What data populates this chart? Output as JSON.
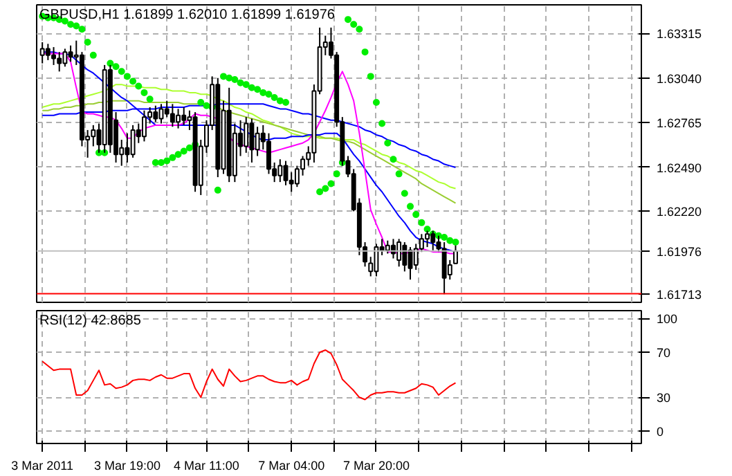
{
  "chart_data": [
    {
      "type": "candlestick",
      "title": "GBPUSD,H1  1.61899 1.62010 1.61899 1.61976",
      "categories": [
        null,
        null,
        null,
        null,
        null,
        null,
        null,
        null,
        null,
        null,
        null,
        null,
        null,
        null,
        null,
        null,
        null,
        null,
        null,
        null,
        null,
        null,
        null,
        null,
        null,
        null,
        null,
        null,
        null,
        null,
        null,
        null,
        null,
        null,
        null,
        null,
        null,
        null,
        null,
        null,
        null,
        null,
        null,
        null,
        null,
        null,
        null,
        null,
        null,
        null,
        null,
        null,
        null,
        null,
        null,
        null,
        null,
        null,
        null,
        null,
        null,
        null,
        null,
        null,
        null,
        null,
        null,
        null,
        null,
        null,
        null,
        null,
        null,
        null
      ],
      "ohlc": [
        [
          1.6318,
          1.6326,
          1.6313,
          1.6322
        ],
        [
          1.6322,
          1.6325,
          1.6315,
          1.6318
        ],
        [
          1.6318,
          1.6323,
          1.6312,
          1.6316
        ],
        [
          1.6316,
          1.632,
          1.6308,
          1.6313
        ],
        [
          1.6313,
          1.6322,
          1.6311,
          1.632
        ],
        [
          1.632,
          1.6324,
          1.6314,
          1.6317
        ],
        [
          1.6317,
          1.6327,
          1.6312,
          1.6318
        ],
        [
          1.6318,
          1.632,
          1.6262,
          1.6266
        ],
        [
          1.6266,
          1.6272,
          1.6255,
          1.6268
        ],
        [
          1.6268,
          1.6275,
          1.6262,
          1.6272
        ],
        [
          1.6272,
          1.6276,
          1.6258,
          1.6263
        ],
        [
          1.6263,
          1.6312,
          1.6258,
          1.6309
        ],
        [
          1.6309,
          1.6312,
          1.6258,
          1.6263
        ],
        [
          1.6278,
          1.6283,
          1.6252,
          1.6257
        ],
        [
          1.6257,
          1.6266,
          1.625,
          1.6261
        ],
        [
          1.6261,
          1.627,
          1.6252,
          1.6257
        ],
        [
          1.6257,
          1.6275,
          1.6255,
          1.6272
        ],
        [
          1.6272,
          1.6276,
          1.6264,
          1.6268
        ],
        [
          1.6268,
          1.6284,
          1.6265,
          1.628
        ],
        [
          1.628,
          1.6286,
          1.6276,
          1.6283
        ],
        [
          1.6283,
          1.6287,
          1.6277,
          1.6279
        ],
        [
          1.6279,
          1.6288,
          1.6276,
          1.6285
        ],
        [
          1.6285,
          1.629,
          1.628,
          1.6282
        ],
        [
          1.6282,
          1.6288,
          1.6274,
          1.6277
        ],
        [
          1.6277,
          1.6285,
          1.6273,
          1.6281
        ],
        [
          1.6281,
          1.6286,
          1.6275,
          1.6278
        ],
        [
          1.6278,
          1.6284,
          1.6272,
          1.628
        ],
        [
          1.628,
          1.6283,
          1.6234,
          1.6238
        ],
        [
          1.6238,
          1.6266,
          1.6232,
          1.6262
        ],
        [
          1.6262,
          1.6278,
          1.6258,
          1.6275
        ],
        [
          1.6275,
          1.6305,
          1.6272,
          1.63
        ],
        [
          1.63,
          1.6304,
          1.6243,
          1.6248
        ],
        [
          1.6248,
          1.629,
          1.6245,
          1.6284
        ],
        [
          1.6284,
          1.6298,
          1.624,
          1.6244
        ],
        [
          1.6244,
          1.6276,
          1.624,
          1.627
        ],
        [
          1.627,
          1.6278,
          1.6256,
          1.6262
        ],
        [
          1.6262,
          1.628,
          1.6258,
          1.6276
        ],
        [
          1.6276,
          1.6279,
          1.6252,
          1.626
        ],
        [
          1.626,
          1.6274,
          1.6256,
          1.627
        ],
        [
          1.627,
          1.6275,
          1.626,
          1.6265
        ],
        [
          1.6265,
          1.627,
          1.6245,
          1.6248
        ],
        [
          1.6248,
          1.6252,
          1.624,
          1.6244
        ],
        [
          1.6244,
          1.6254,
          1.624,
          1.625
        ],
        [
          1.625,
          1.6253,
          1.6238,
          1.6241
        ],
        [
          1.6241,
          1.6246,
          1.6234,
          1.6239
        ],
        [
          1.6239,
          1.625,
          1.6237,
          1.6248
        ],
        [
          1.6248,
          1.6256,
          1.6244,
          1.6254
        ],
        [
          1.6254,
          1.6262,
          1.625,
          1.6258
        ],
        [
          1.6258,
          1.63,
          1.6252,
          1.6296
        ],
        [
          1.6296,
          1.6335,
          1.6294,
          1.6323
        ],
        [
          1.6323,
          1.633,
          1.6318,
          1.6326
        ],
        [
          1.6326,
          1.6335,
          1.6316,
          1.6318
        ],
        [
          1.6318,
          1.632,
          1.6274,
          1.6277
        ],
        [
          1.6277,
          1.628,
          1.625,
          1.6253
        ],
        [
          1.6253,
          1.6256,
          1.6243,
          1.6245
        ],
        [
          1.6245,
          1.6248,
          1.6222,
          1.6223
        ],
        [
          1.6227,
          1.623,
          1.6195,
          1.62
        ],
        [
          1.62,
          1.6203,
          1.6188,
          1.6191
        ],
        [
          1.6185,
          1.6194,
          1.6182,
          1.619
        ],
        [
          1.6185,
          1.6202,
          1.6182,
          1.62
        ],
        [
          1.62,
          1.6205,
          1.6195,
          1.6198
        ],
        [
          1.6198,
          1.6204,
          1.6196,
          1.6201
        ],
        [
          1.6201,
          1.6205,
          1.6193,
          1.6196
        ],
        [
          1.6192,
          1.6205,
          1.6188,
          1.6203
        ],
        [
          1.6201,
          1.6203,
          1.6185,
          1.6189
        ],
        [
          1.6198,
          1.62,
          1.618,
          1.6187
        ],
        [
          1.6189,
          1.6202,
          1.6186,
          1.6199
        ],
        [
          1.6199,
          1.6208,
          1.6197,
          1.6205
        ],
        [
          1.6205,
          1.621,
          1.62,
          1.6208
        ],
        [
          1.6208,
          1.621,
          1.6198,
          1.6203
        ],
        [
          1.6203,
          1.6207,
          1.6197,
          1.6199
        ],
        [
          1.6199,
          1.6203,
          1.6171,
          1.6181
        ],
        [
          1.6183,
          1.6192,
          1.618,
          1.6189
        ],
        [
          1.61899,
          1.6201,
          1.61899,
          1.61976
        ]
      ],
      "series": [
        {
          "type": "line",
          "color": "#adff2f",
          "values": [
            1.6286,
            1.6287,
            1.6288,
            1.6288,
            1.6289,
            1.629,
            1.6291,
            1.6292,
            1.6293,
            1.6294,
            1.6295,
            1.6296,
            1.6298,
            1.63,
            1.63,
            1.6299,
            1.6299,
            1.6299,
            1.6298,
            1.6298,
            1.6298,
            1.6297,
            1.6297,
            1.6296,
            1.6296,
            1.6296,
            1.6295,
            1.6295,
            1.6294,
            1.6294,
            1.6293,
            1.6291,
            1.629,
            1.6288,
            1.6286,
            1.6285,
            1.6283,
            1.6282,
            1.628,
            1.6278,
            1.6277,
            1.6275,
            1.6274,
            1.6272,
            1.627,
            1.6269,
            1.6268,
            1.6268,
            1.6268,
            1.6267,
            1.6267,
            1.6267,
            1.6267,
            1.6266,
            1.6266,
            1.6266,
            1.6264,
            1.6263,
            1.6261,
            1.6259,
            1.6257,
            1.6256,
            1.6254,
            1.6252,
            1.6251,
            1.6249,
            1.6247,
            1.6246,
            1.6244,
            1.6242,
            1.624,
            1.6239,
            1.6237,
            1.6236
          ]
        },
        {
          "type": "line",
          "color": "#9acd32",
          "values": [
            1.6284,
            1.6284,
            1.6285,
            1.6285,
            1.6286,
            1.6286,
            1.6287,
            1.6287,
            1.6288,
            1.6288,
            1.6289,
            1.6289,
            1.629,
            1.629,
            1.629,
            1.629,
            1.629,
            1.629,
            1.6289,
            1.6289,
            1.6289,
            1.6289,
            1.6289,
            1.6289,
            1.6289,
            1.6288,
            1.6288,
            1.6288,
            1.6288,
            1.6288,
            1.6287,
            1.6286,
            1.6284,
            1.6283,
            1.6282,
            1.6281,
            1.628,
            1.6279,
            1.6278,
            1.6277,
            1.6276,
            1.6275,
            1.6274,
            1.6273,
            1.6272,
            1.6271,
            1.627,
            1.6269,
            1.6269,
            1.6268,
            1.6267,
            1.6267,
            1.6266,
            1.6265,
            1.6265,
            1.6264,
            1.6262,
            1.626,
            1.6258,
            1.6256,
            1.6254,
            1.6252,
            1.625,
            1.6248,
            1.6246,
            1.6244,
            1.6242,
            1.6239,
            1.6237,
            1.6235,
            1.6233,
            1.6231,
            1.6229,
            1.6227
          ]
        },
        {
          "type": "line",
          "color": "#0000ff",
          "values": [
            1.6281,
            1.6281,
            1.6281,
            1.6282,
            1.6282,
            1.6282,
            1.6282,
            1.6283,
            1.6283,
            1.6283,
            1.6283,
            1.6283,
            1.6284,
            1.6284,
            1.6284,
            1.6284,
            1.6285,
            1.6285,
            1.6285,
            1.6285,
            1.6285,
            1.6286,
            1.6286,
            1.6286,
            1.6286,
            1.6286,
            1.6287,
            1.6287,
            1.6287,
            1.6287,
            1.6287,
            1.6288,
            1.6288,
            1.6288,
            1.6288,
            1.6288,
            1.6288,
            1.6288,
            1.6288,
            1.6288,
            1.6287,
            1.6286,
            1.6285,
            1.6285,
            1.6284,
            1.6283,
            1.6282,
            1.6282,
            1.6281,
            1.628,
            1.6279,
            1.6278,
            1.6278,
            1.6277,
            1.6276,
            1.6275,
            1.6274,
            1.6272,
            1.6271,
            1.6269,
            1.6268,
            1.6266,
            1.6265,
            1.6263,
            1.6262,
            1.626,
            1.6259,
            1.6257,
            1.6256,
            1.6254,
            1.6253,
            1.6251,
            1.625,
            1.6249
          ]
        },
        {
          "type": "line",
          "color": "#0000ff",
          "values": [
            1.632,
            1.632,
            1.632,
            1.6319,
            1.6319,
            1.6318,
            1.6315,
            1.6312,
            1.6309,
            1.6307,
            1.6304,
            1.6301,
            1.6298,
            1.6295,
            1.6292,
            1.629,
            1.6287,
            1.6284,
            1.6281,
            1.6278,
            1.6275,
            1.6275,
            1.6275,
            1.6275,
            1.6275,
            1.6275,
            1.6275,
            1.6275,
            1.6275,
            1.6275,
            1.6275,
            1.6275,
            null,
            1.6275,
            1.6275,
            1.6273,
            1.6271,
            1.6269,
            1.6267,
            1.6266,
            1.6266,
            1.6267,
            1.6267,
            1.6267,
            1.6268,
            1.6268,
            1.6268,
            1.6269,
            1.6269,
            1.6269,
            1.627,
            1.627,
            1.627,
            1.6267,
            1.6262,
            1.6257,
            1.6253,
            1.6248,
            1.6243,
            1.6238,
            1.6234,
            1.6229,
            1.6224,
            1.6219,
            1.6215,
            1.621,
            1.6206,
            1.6204,
            1.6203,
            1.6202,
            1.62,
            1.6199,
            1.6198,
            1.6197
          ]
        },
        {
          "type": "line",
          "color": "#ff00ff",
          "values": [
            1.6319,
            1.6319,
            1.6319,
            1.6319,
            1.6319,
            1.6314,
            1.6298,
            1.6283,
            1.6282,
            1.6282,
            1.6281,
            1.628,
            1.628,
            1.6278,
            1.6273,
            1.6267,
            1.6267,
            1.6271,
            1.6273,
            1.6274,
            1.6275,
            1.6275,
            1.6275,
            1.6275,
            1.6275,
            1.6276,
            1.6279,
            1.6282,
            1.6281,
            1.6281,
            1.628,
            1.6279,
            null,
            1.6268,
            1.6264,
            1.6263,
            1.6262,
            1.6261,
            1.626,
            1.6259,
            1.6258,
            1.6259,
            1.626,
            1.6261,
            1.6262,
            1.6263,
            1.6264,
            1.6266,
            1.627,
            1.6277,
            1.6284,
            1.6292,
            1.6301,
            1.6308,
            1.63,
            1.629,
            1.627,
            1.6247,
            1.6223,
            1.6214,
            1.6206,
            1.6197,
            1.6197,
            1.6196,
            1.6196,
            1.6197,
            1.6198,
            1.6199,
            1.6198,
            1.6197,
            1.6197,
            1.6197,
            1.6196,
            1.6196
          ]
        },
        {
          "type": "scatter",
          "marker": "circle",
          "color": "#00ee00",
          "values": [
            1.6342,
            1.6341,
            1.6341,
            1.634,
            1.6339,
            1.6337,
            1.6336,
            1.6334,
            1.6326,
            1.6318,
            1.6258,
            1.6258,
            1.6313,
            1.6311,
            1.6308,
            1.6305,
            1.6302,
            1.6299,
            1.6295,
            1.6291,
            1.6252,
            1.6252,
            1.6253,
            1.6255,
            1.6257,
            1.6259,
            1.6261,
            1.6263,
            1.6289,
            1.6287,
            1.6286,
            1.6235,
            1.6305,
            1.6304,
            1.6303,
            1.6301,
            1.63,
            1.6298,
            1.6297,
            1.6295,
            1.6294,
            1.6292,
            1.629,
            1.6289,
            null,
            null,
            null,
            null,
            null,
            1.6234,
            1.6236,
            1.6239,
            1.6245,
            1.6252,
            1.634,
            1.6337,
            1.6334,
            1.632,
            1.6305,
            1.6289,
            1.6276,
            1.6264,
            1.6254,
            1.6245,
            1.6233,
            1.6225,
            1.622,
            1.6215,
            1.6211,
            1.6208,
            1.6207,
            1.6206,
            1.6204,
            1.6203
          ]
        }
      ],
      "ylim": [
        1.6166,
        1.6349
      ],
      "yticks": [
        {
          "value": 1.63315,
          "label": "1.63315"
        },
        {
          "value": 1.6304,
          "label": "1.63040"
        },
        {
          "value": 1.62765,
          "label": "1.62765"
        },
        {
          "value": 1.6249,
          "label": "1.62490"
        },
        {
          "value": 1.6222,
          "label": "1.62220"
        }
      ],
      "ref_lines": [
        {
          "axis": "y",
          "value": 1.61976,
          "label": "1.61976",
          "color": "#c0c0c0"
        },
        {
          "axis": "y",
          "value": 1.61713,
          "label": "1.61713",
          "color": "#ff0000"
        }
      ],
      "grid": true,
      "tick_labels": "y"
    },
    {
      "type": "line",
      "title": "RSI(12) 42.8685",
      "categories": [
        "3 Mar 2011",
        null,
        null,
        null,
        null,
        null,
        null,
        null,
        null,
        null,
        null,
        null,
        null,
        null,
        null,
        "3 Mar 19:00",
        null,
        null,
        null,
        null,
        null,
        null,
        null,
        null,
        null,
        null,
        null,
        null,
        null,
        "4 Mar 11:00",
        null,
        null,
        null,
        null,
        null,
        null,
        null,
        null,
        null,
        null,
        null,
        null,
        null,
        null,
        "7 Mar 04:00",
        null,
        null,
        null,
        null,
        null,
        null,
        null,
        null,
        null,
        null,
        null,
        null,
        null,
        null,
        "7 Mar 20:00",
        null,
        null,
        null,
        null,
        null,
        null,
        null,
        null,
        null,
        null,
        null,
        null,
        null,
        null
      ],
      "series": [
        {
          "color": "#ff0000",
          "values": [
            62,
            58,
            54,
            55,
            55,
            55,
            32,
            32,
            36,
            45,
            54,
            41,
            42,
            38,
            39,
            41,
            45,
            46,
            46,
            45,
            48,
            50,
            47,
            47,
            49,
            51,
            51,
            38,
            30,
            44,
            55,
            46,
            40,
            55,
            49,
            44,
            45,
            47,
            49,
            49,
            46,
            44,
            43,
            43,
            45,
            41,
            44,
            46,
            60,
            70,
            72,
            69,
            59,
            46,
            41,
            36,
            30,
            28,
            32,
            34,
            34,
            35,
            35,
            34,
            34,
            36,
            38,
            42,
            41,
            39,
            32,
            36,
            40,
            42.8685
          ]
        }
      ],
      "ylim": [
        -11,
        107
      ],
      "yticks": [
        0,
        30,
        70,
        100
      ],
      "grid": true
    }
  ]
}
